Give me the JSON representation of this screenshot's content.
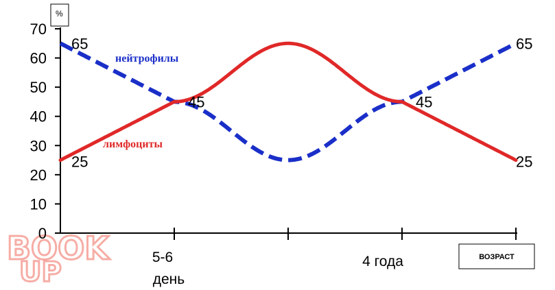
{
  "chart_data": {
    "type": "line",
    "title": "",
    "ylabel": "%",
    "xlabel": "ВОЗРАСТ",
    "ylim": [
      0,
      70
    ],
    "yticks": [
      0,
      10,
      20,
      30,
      40,
      50,
      60,
      70
    ],
    "x_ticks": [
      "",
      "5-6\nдень",
      "",
      "4 года",
      ""
    ],
    "x_tick_labels": [
      {
        "text": "5-6",
        "line2": "день"
      },
      {
        "text": "4 года"
      }
    ],
    "grid": false,
    "series": [
      {
        "name": "нейтрофилы",
        "color": "#1a2fc8",
        "style": "dashed",
        "x": [
          0,
          1,
          2,
          3,
          4
        ],
        "values": [
          65,
          45,
          25,
          45,
          65
        ]
      },
      {
        "name": "лимфоциты",
        "color": "#e02828",
        "style": "solid",
        "x": [
          0,
          1,
          2,
          3,
          4
        ],
        "values": [
          25,
          45,
          65,
          45,
          25
        ]
      }
    ],
    "data_labels": [
      {
        "text": "65"
      },
      {
        "text": "45"
      },
      {
        "text": "45"
      },
      {
        "text": "65"
      },
      {
        "text": "25"
      },
      {
        "text": "25"
      }
    ]
  },
  "watermark": {
    "line1": "BOOK",
    "line2": "UP"
  }
}
